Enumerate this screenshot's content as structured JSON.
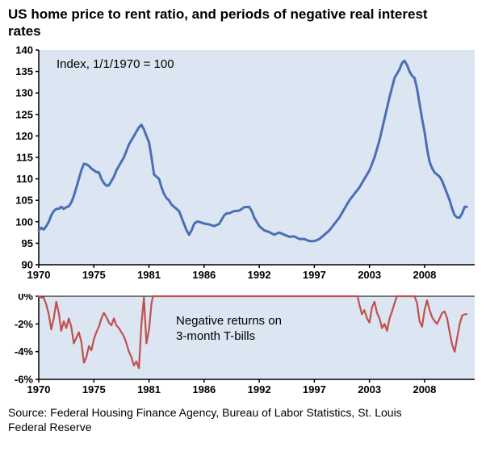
{
  "title": "US home price to rent ratio, and periods of negative real interest rates",
  "source": "Source: Federal Housing Finance Agency, Bureau of Labor Statistics, St. Louis Federal Reserve",
  "colors": {
    "plot_bg": "#dce6f2",
    "axis": "#000000",
    "line_blue": "#4a6fb5",
    "line_red": "#c0504d"
  },
  "chart_data": [
    {
      "type": "line",
      "name": "us-home-price-to-rent-ratio",
      "annotation": "Index, 1/1/1970 = 100",
      "xlim": [
        1970,
        2013.5
      ],
      "ylim": [
        90,
        140
      ],
      "axis_top": false,
      "grid": false,
      "y_ticks": [
        {
          "pos": 140,
          "label": "140"
        },
        {
          "pos": 135,
          "label": "135"
        },
        {
          "pos": 130,
          "label": "130"
        },
        {
          "pos": 125,
          "label": "125"
        },
        {
          "pos": 120,
          "label": "120"
        },
        {
          "pos": 115,
          "label": "115"
        },
        {
          "pos": 110,
          "label": "110"
        },
        {
          "pos": 105,
          "label": "105"
        },
        {
          "pos": 100,
          "label": "100"
        },
        {
          "pos": 95,
          "label": "95"
        },
        {
          "pos": 90,
          "label": "90"
        }
      ],
      "x_ticks": [
        {
          "pos": 1970,
          "label": "1970"
        },
        {
          "pos": 1975.5,
          "label": "1975"
        },
        {
          "pos": 1981,
          "label": "1981"
        },
        {
          "pos": 1986.5,
          "label": "1986"
        },
        {
          "pos": 1992,
          "label": "1992"
        },
        {
          "pos": 1997.5,
          "label": "1997"
        },
        {
          "pos": 2003,
          "label": "2003"
        },
        {
          "pos": 2008.5,
          "label": "2008"
        }
      ],
      "series": [
        {
          "name": "Home price to rent ratio",
          "color": "#4a6fb5",
          "width": 3,
          "points": [
            [
              1970,
              98
            ],
            [
              1970.25,
              98.6
            ],
            [
              1970.5,
              98.2
            ],
            [
              1970.75,
              99
            ],
            [
              1971,
              100
            ],
            [
              1971.25,
              101.5
            ],
            [
              1971.5,
              102.5
            ],
            [
              1971.75,
              103
            ],
            [
              1972,
              103
            ],
            [
              1972.25,
              103.5
            ],
            [
              1972.5,
              103
            ],
            [
              1972.75,
              103.4
            ],
            [
              1973,
              103.6
            ],
            [
              1973.25,
              104.5
            ],
            [
              1973.5,
              106
            ],
            [
              1973.75,
              108
            ],
            [
              1974,
              110
            ],
            [
              1974.25,
              112
            ],
            [
              1974.5,
              113.5
            ],
            [
              1974.75,
              113.4
            ],
            [
              1975,
              113
            ],
            [
              1975.25,
              112.4
            ],
            [
              1975.5,
              112
            ],
            [
              1975.75,
              111.6
            ],
            [
              1976,
              111.5
            ],
            [
              1976.25,
              110
            ],
            [
              1976.5,
              109
            ],
            [
              1976.75,
              108.4
            ],
            [
              1977,
              108.5
            ],
            [
              1977.25,
              109.5
            ],
            [
              1977.5,
              110.5
            ],
            [
              1977.75,
              112
            ],
            [
              1978,
              113
            ],
            [
              1978.25,
              114
            ],
            [
              1978.5,
              115
            ],
            [
              1978.75,
              116.5
            ],
            [
              1979,
              118
            ],
            [
              1979.25,
              119
            ],
            [
              1979.5,
              120
            ],
            [
              1979.75,
              121
            ],
            [
              1980,
              122
            ],
            [
              1980.25,
              122.6
            ],
            [
              1980.5,
              121.5
            ],
            [
              1980.75,
              120
            ],
            [
              1981,
              118.5
            ],
            [
              1981.25,
              115
            ],
            [
              1981.5,
              111
            ],
            [
              1981.75,
              110.5
            ],
            [
              1982,
              110
            ],
            [
              1982.25,
              108
            ],
            [
              1982.5,
              106.5
            ],
            [
              1982.75,
              105.5
            ],
            [
              1983,
              105
            ],
            [
              1983.25,
              104
            ],
            [
              1983.5,
              103.5
            ],
            [
              1983.75,
              103
            ],
            [
              1984,
              102.5
            ],
            [
              1984.25,
              101
            ],
            [
              1984.5,
              99.5
            ],
            [
              1984.75,
              98
            ],
            [
              1985,
              97
            ],
            [
              1985.25,
              98
            ],
            [
              1985.5,
              99.5
            ],
            [
              1985.75,
              100
            ],
            [
              1986,
              100
            ],
            [
              1986.5,
              99.6
            ],
            [
              1987,
              99.4
            ],
            [
              1987.5,
              99
            ],
            [
              1988,
              99.5
            ],
            [
              1988.25,
              100.5
            ],
            [
              1988.5,
              101.5
            ],
            [
              1988.75,
              102
            ],
            [
              1989,
              102
            ],
            [
              1989.5,
              102.5
            ],
            [
              1990,
              102.6
            ],
            [
              1990.5,
              103.4
            ],
            [
              1991,
              103.5
            ],
            [
              1991.25,
              102.5
            ],
            [
              1991.5,
              101
            ],
            [
              1991.75,
              100
            ],
            [
              1992,
              99
            ],
            [
              1992.25,
              98.5
            ],
            [
              1992.5,
              98
            ],
            [
              1993,
              97.6
            ],
            [
              1993.5,
              97
            ],
            [
              1994,
              97.5
            ],
            [
              1994.5,
              97
            ],
            [
              1995,
              96.5
            ],
            [
              1995.5,
              96.6
            ],
            [
              1996,
              96
            ],
            [
              1996.5,
              96
            ],
            [
              1997,
              95.5
            ],
            [
              1997.5,
              95.5
            ],
            [
              1998,
              96
            ],
            [
              1998.5,
              97
            ],
            [
              1999,
              98
            ],
            [
              1999.5,
              99.5
            ],
            [
              2000,
              101
            ],
            [
              2000.5,
              103
            ],
            [
              2001,
              105
            ],
            [
              2001.5,
              106.5
            ],
            [
              2002,
              108
            ],
            [
              2002.5,
              110
            ],
            [
              2003,
              112
            ],
            [
              2003.5,
              115
            ],
            [
              2004,
              119
            ],
            [
              2004.5,
              124
            ],
            [
              2005,
              129
            ],
            [
              2005.5,
              133.5
            ],
            [
              2006,
              135.5
            ],
            [
              2006.25,
              137
            ],
            [
              2006.5,
              137.5
            ],
            [
              2006.75,
              136.5
            ],
            [
              2007,
              135
            ],
            [
              2007.25,
              134
            ],
            [
              2007.5,
              133.5
            ],
            [
              2007.75,
              131
            ],
            [
              2008,
              127.5
            ],
            [
              2008.25,
              124
            ],
            [
              2008.5,
              121
            ],
            [
              2008.75,
              117
            ],
            [
              2009,
              114
            ],
            [
              2009.25,
              112.5
            ],
            [
              2009.5,
              111.5
            ],
            [
              2009.75,
              111
            ],
            [
              2010,
              110.5
            ],
            [
              2010.25,
              109.5
            ],
            [
              2010.5,
              108
            ],
            [
              2010.75,
              106.5
            ],
            [
              2011,
              105
            ],
            [
              2011.25,
              103
            ],
            [
              2011.5,
              101.5
            ],
            [
              2011.75,
              101
            ],
            [
              2012,
              101
            ],
            [
              2012.25,
              102
            ],
            [
              2012.5,
              103.5
            ],
            [
              2012.7,
              103.5
            ]
          ]
        }
      ]
    },
    {
      "type": "line",
      "name": "negative-real-tbill-returns",
      "annotation": "Negative returns on\n3-month T-bills",
      "xlim": [
        1970,
        2013.5
      ],
      "ylim": [
        -6,
        0
      ],
      "axis_top": true,
      "grid": false,
      "y_ticks": [
        {
          "pos": 0,
          "label": "0%"
        },
        {
          "pos": -2,
          "label": "-2%"
        },
        {
          "pos": -4,
          "label": "-4%"
        },
        {
          "pos": -6,
          "label": "-6%"
        }
      ],
      "x_ticks": [
        {
          "pos": 1970,
          "label": "1970"
        },
        {
          "pos": 1975.5,
          "label": "1975"
        },
        {
          "pos": 1981,
          "label": "1981"
        },
        {
          "pos": 1986.5,
          "label": "1986"
        },
        {
          "pos": 1992,
          "label": "1992"
        },
        {
          "pos": 1997.5,
          "label": "1997"
        },
        {
          "pos": 2003,
          "label": "2003"
        },
        {
          "pos": 2008.5,
          "label": "2008"
        }
      ],
      "series": [
        {
          "name": "Real return on 3-month T-bills",
          "color": "#c0504d",
          "width": 2.2,
          "points": [
            [
              1970,
              0
            ],
            [
              1970.25,
              -0.1
            ],
            [
              1970.5,
              -0.1
            ],
            [
              1970.75,
              -0.6
            ],
            [
              1971,
              -1.3
            ],
            [
              1971.25,
              -2.4
            ],
            [
              1971.5,
              -1.6
            ],
            [
              1971.75,
              -0.4
            ],
            [
              1972,
              -1.2
            ],
            [
              1972.25,
              -2.5
            ],
            [
              1972.5,
              -1.8
            ],
            [
              1972.75,
              -2.3
            ],
            [
              1973,
              -1.6
            ],
            [
              1973.25,
              -2.2
            ],
            [
              1973.5,
              -3.4
            ],
            [
              1973.75,
              -3
            ],
            [
              1974,
              -2.6
            ],
            [
              1974.25,
              -3.3
            ],
            [
              1974.5,
              -4.8
            ],
            [
              1974.75,
              -4.4
            ],
            [
              1975,
              -3.6
            ],
            [
              1975.25,
              -3.9
            ],
            [
              1975.5,
              -3.1
            ],
            [
              1975.75,
              -2.6
            ],
            [
              1976,
              -2.2
            ],
            [
              1976.25,
              -1.6
            ],
            [
              1976.5,
              -1.2
            ],
            [
              1976.75,
              -1.5
            ],
            [
              1977,
              -1.9
            ],
            [
              1977.25,
              -2.1
            ],
            [
              1977.5,
              -1.6
            ],
            [
              1977.75,
              -2.1
            ],
            [
              1978,
              -2.3
            ],
            [
              1978.25,
              -2.6
            ],
            [
              1978.5,
              -2.9
            ],
            [
              1978.75,
              -3.4
            ],
            [
              1979,
              -4
            ],
            [
              1979.25,
              -4.4
            ],
            [
              1979.5,
              -5
            ],
            [
              1979.75,
              -4.7
            ],
            [
              1980,
              -5.2
            ],
            [
              1980.25,
              -2
            ],
            [
              1980.5,
              -0.1
            ],
            [
              1980.75,
              -3.4
            ],
            [
              1981,
              -2.4
            ],
            [
              1981.25,
              -0.5
            ],
            [
              1981.4,
              0
            ],
            [
              1982,
              0
            ],
            [
              1984,
              0
            ],
            [
              1986,
              0
            ],
            [
              1988,
              0
            ],
            [
              1990,
              0
            ],
            [
              1992,
              0
            ],
            [
              1994,
              0
            ],
            [
              1996,
              0
            ],
            [
              1998,
              0
            ],
            [
              2000,
              0
            ],
            [
              2001.8,
              0
            ],
            [
              2002,
              -0.6
            ],
            [
              2002.25,
              -1.3
            ],
            [
              2002.5,
              -1
            ],
            [
              2002.75,
              -1.6
            ],
            [
              2003,
              -1.9
            ],
            [
              2003.25,
              -0.8
            ],
            [
              2003.5,
              -0.4
            ],
            [
              2003.75,
              -1.2
            ],
            [
              2004,
              -1.6
            ],
            [
              2004.25,
              -2.3
            ],
            [
              2004.5,
              -2
            ],
            [
              2004.75,
              -2.5
            ],
            [
              2005,
              -1.6
            ],
            [
              2005.25,
              -1.1
            ],
            [
              2005.5,
              -0.5
            ],
            [
              2005.75,
              0
            ],
            [
              2006.5,
              0
            ],
            [
              2007.5,
              0
            ],
            [
              2007.75,
              -0.5
            ],
            [
              2008,
              -1.8
            ],
            [
              2008.25,
              -2.2
            ],
            [
              2008.5,
              -1
            ],
            [
              2008.75,
              -0.3
            ],
            [
              2009,
              -1
            ],
            [
              2009.25,
              -1.5
            ],
            [
              2009.5,
              -1.8
            ],
            [
              2009.75,
              -2
            ],
            [
              2010,
              -1.6
            ],
            [
              2010.25,
              -1.2
            ],
            [
              2010.5,
              -1.1
            ],
            [
              2010.75,
              -1.6
            ],
            [
              2011,
              -2.6
            ],
            [
              2011.25,
              -3.5
            ],
            [
              2011.5,
              -4
            ],
            [
              2011.75,
              -3
            ],
            [
              2012,
              -2
            ],
            [
              2012.25,
              -1.4
            ],
            [
              2012.5,
              -1.3
            ],
            [
              2012.7,
              -1.3
            ]
          ]
        }
      ]
    }
  ]
}
